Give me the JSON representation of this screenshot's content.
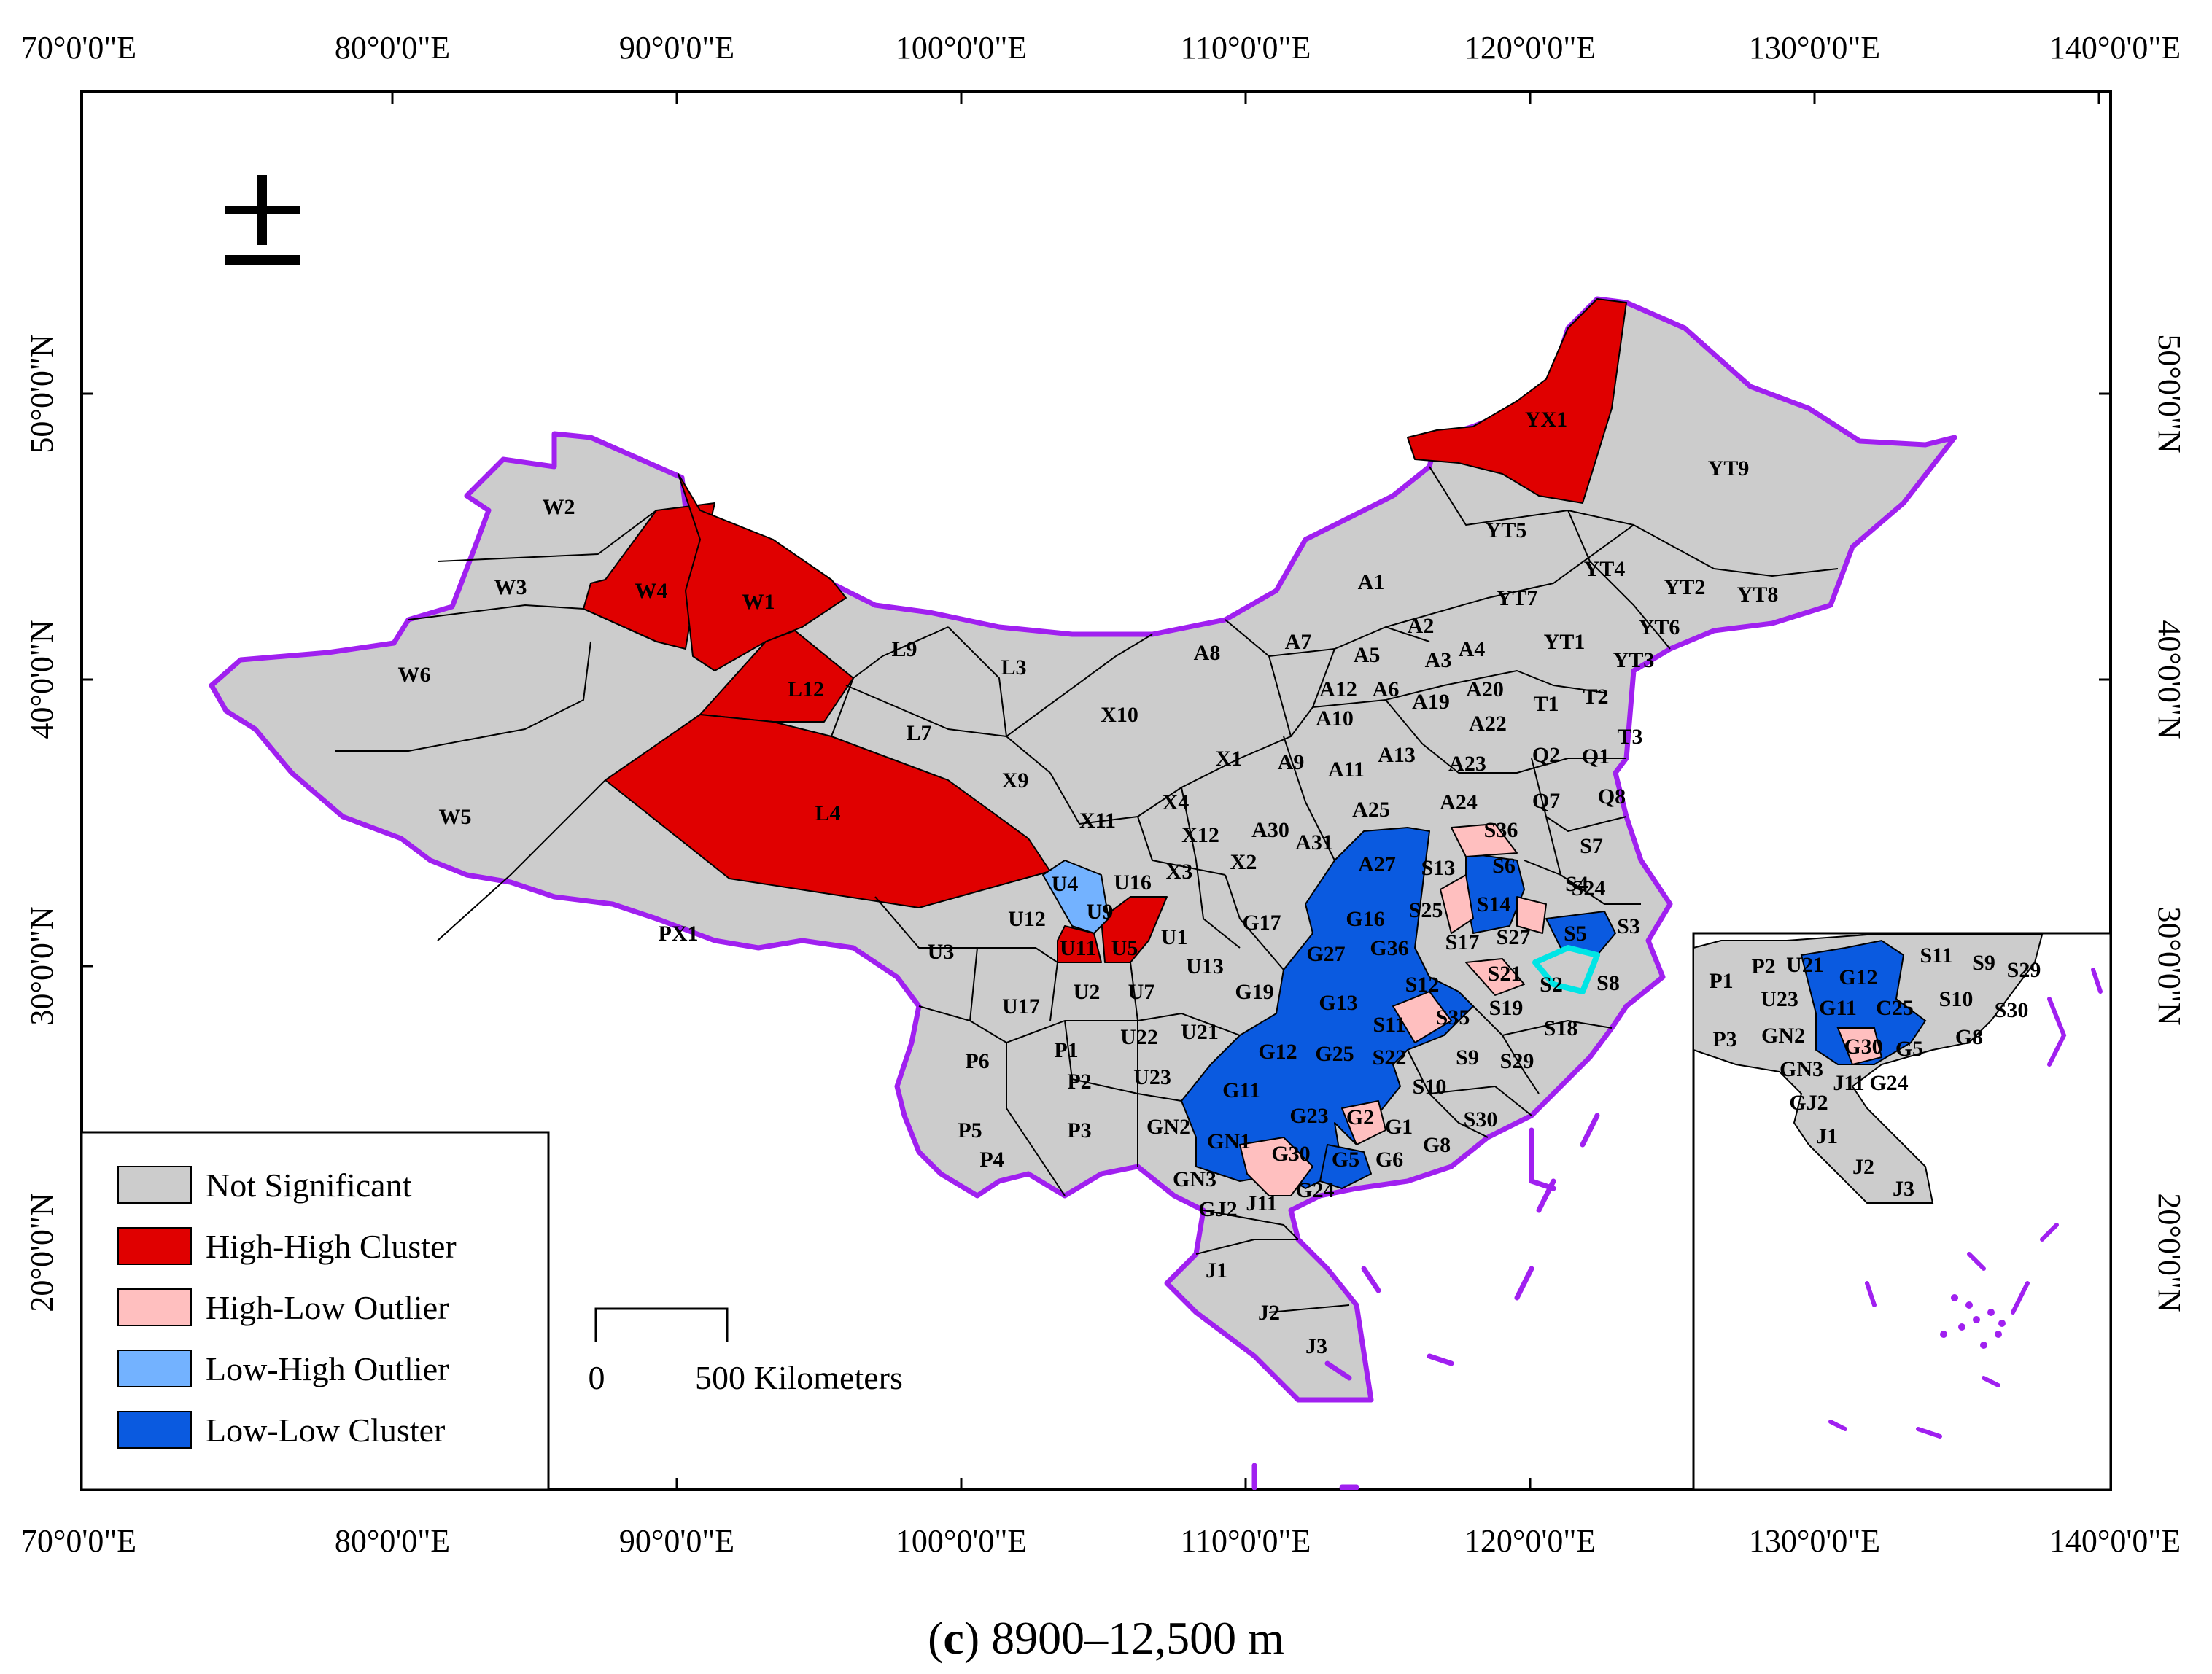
{
  "caption": {
    "letter": "c",
    "text": "8900–12,500 m"
  },
  "lon_labels": [
    "70°0'0\"E",
    "80°0'0\"E",
    "90°0'0\"E",
    "100°0'0\"E",
    "110°0'0\"E",
    "120°0'0\"E",
    "130°0'0\"E",
    "140°0'0\"E"
  ],
  "lat_labels": [
    "50°0'0\"N",
    "40°0'0\"N",
    "30°0'0\"N",
    "20°0'0\"N"
  ],
  "north_arrow": "north-arrow-icon",
  "legend": [
    {
      "label": "Not Significant",
      "color": "#cccccc"
    },
    {
      "label": "High-High Cluster",
      "color": "#e00000"
    },
    {
      "label": "High-Low Outlier",
      "color": "#ffbfbf"
    },
    {
      "label": "Low-High Outlier",
      "color": "#73b2ff"
    },
    {
      "label": "Low-Low Cluster",
      "color": "#0a5ae0"
    }
  ],
  "scale_bar": {
    "start": "0",
    "end": "500 Kilometers"
  },
  "colors": {
    "not_significant": "#cccccc",
    "high_high": "#e00000",
    "high_low": "#ffbfbf",
    "low_high": "#73b2ff",
    "low_low": "#0a5ae0",
    "boundary": "#a020f0",
    "highlight": "#00e5e5"
  },
  "regions": {
    "high_high": [
      "YX1",
      "W4",
      "W1",
      "L12",
      "L4",
      "U11",
      "U5"
    ],
    "low_high": [
      "U4"
    ],
    "low_low": [
      "A27",
      "G16",
      "S6",
      "S14",
      "S5",
      "G27",
      "G36",
      "S12",
      "G13",
      "G12",
      "G25",
      "G11",
      "G23",
      "GN1",
      "G5"
    ],
    "high_low": [
      "S36",
      "S25",
      "S27",
      "S21",
      "S35",
      "G2",
      "G30"
    ],
    "labels": [
      "W2",
      "W3",
      "W4",
      "W1",
      "W6",
      "W5",
      "PX1",
      "L9",
      "L3",
      "L12",
      "L7",
      "L4",
      "X10",
      "A8",
      "A7",
      "A1",
      "YT5",
      "YX1",
      "YT9",
      "YT7",
      "YT4",
      "YT2",
      "YT8",
      "YT6",
      "YT1",
      "YT3",
      "A2",
      "A5",
      "A3",
      "A4",
      "A12",
      "A6",
      "A19",
      "A20",
      "T1",
      "T2",
      "A10",
      "A22",
      "T3",
      "Q2",
      "Q1",
      "A13",
      "A23",
      "X1",
      "A9",
      "A11",
      "A25",
      "A24",
      "Q7",
      "Q8",
      "X9",
      "X11",
      "X4",
      "X12",
      "A30",
      "A31",
      "X3",
      "X2",
      "A27",
      "S36",
      "S7",
      "S13",
      "S6",
      "S4",
      "S24",
      "U4",
      "U16",
      "U9",
      "U12",
      "U11",
      "U5",
      "U1",
      "G17",
      "G16",
      "S25",
      "S14",
      "S27",
      "S5",
      "S3",
      "S17",
      "S2",
      "S8",
      "U3",
      "U13",
      "G27",
      "G36",
      "S12",
      "S21",
      "S19",
      "S18",
      "U2",
      "U7",
      "U17",
      "G19",
      "G13",
      "S11",
      "S35",
      "S9",
      "S29",
      "U21",
      "G12",
      "G25",
      "S22",
      "P6",
      "P1",
      "U22",
      "U23",
      "S10",
      "P2",
      "G11",
      "G23",
      "G2",
      "G1",
      "G8",
      "S30",
      "P5",
      "P3",
      "GN2",
      "GN1",
      "G30",
      "G5",
      "G6",
      "P4",
      "GN3",
      "G24",
      "GJ2",
      "J11",
      "J1",
      "J2",
      "J3"
    ],
    "inset_labels": [
      "P1",
      "P2",
      "U21",
      "G12",
      "S11",
      "S9",
      "S29",
      "U23",
      "G11",
      "C25",
      "S10",
      "S30",
      "P3",
      "GN2",
      "G30",
      "G5",
      "G8",
      "GN3",
      "J11",
      "G24",
      "GJ2",
      "J1",
      "J2",
      "J3"
    ]
  }
}
